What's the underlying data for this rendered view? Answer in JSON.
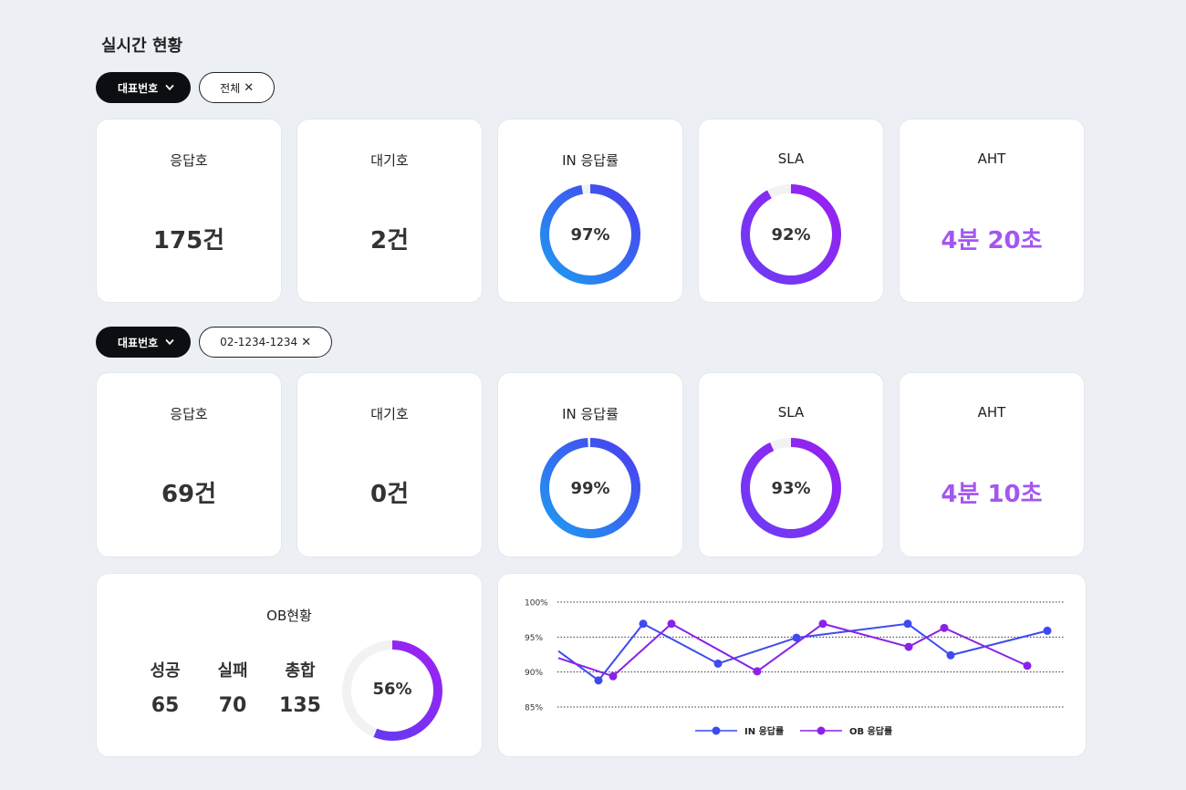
{
  "page": {
    "title": "실시간 현황"
  },
  "filters": [
    {
      "dropdown": "대표번호",
      "chip": "전체"
    },
    {
      "dropdown": "대표번호",
      "chip": "02-1234-1234"
    }
  ],
  "rows": [
    {
      "answered": {
        "label": "응답호",
        "value": "175건"
      },
      "waiting": {
        "label": "대기호",
        "value": "2건"
      },
      "in_rate": {
        "label": "IN 응답률",
        "value": "97%",
        "percent": 97
      },
      "sla": {
        "label": "SLA",
        "value": "92%",
        "percent": 92
      },
      "aht": {
        "label": "AHT",
        "value": "4분 20초"
      }
    },
    {
      "answered": {
        "label": "응답호",
        "value": "69건"
      },
      "waiting": {
        "label": "대기호",
        "value": "0건"
      },
      "in_rate": {
        "label": "IN 응답률",
        "value": "99%",
        "percent": 99
      },
      "sla": {
        "label": "SLA",
        "value": "93%",
        "percent": 93
      },
      "aht": {
        "label": "AHT",
        "value": "4분 10초"
      }
    }
  ],
  "ob": {
    "title": "OB현황",
    "stats": [
      {
        "label": "성공",
        "value": "65"
      },
      {
        "label": "실패",
        "value": "70"
      },
      {
        "label": "총합",
        "value": "135"
      }
    ],
    "rate": {
      "value": "56%",
      "percent": 56
    }
  },
  "colors": {
    "in_gradient": [
      "#1e9bf0",
      "#4b3df0"
    ],
    "sla_gradient": [
      "#6a3df5",
      "#9a1ff0"
    ],
    "ob_gradient": [
      "#5a3df5",
      "#a020f0"
    ],
    "in_line": "#3d4af0",
    "ob_line": "#8a22e8",
    "aht": "#a357f0"
  },
  "chart_data": {
    "type": "line",
    "yticks": [
      "100%",
      "95%",
      "90%",
      "85%"
    ],
    "ylim": [
      85,
      100
    ],
    "grid": true,
    "legend_position": "bottom-center",
    "series": [
      {
        "name": "IN 응답률",
        "values": [
          93,
          88.8,
          96.9,
          91.2,
          94.9,
          96.9,
          92.4,
          95.9
        ]
      },
      {
        "name": "OB 응답률",
        "values": [
          92,
          89.4,
          96.9,
          90.1,
          96.9,
          93.6,
          96.3,
          90.9
        ]
      }
    ]
  }
}
